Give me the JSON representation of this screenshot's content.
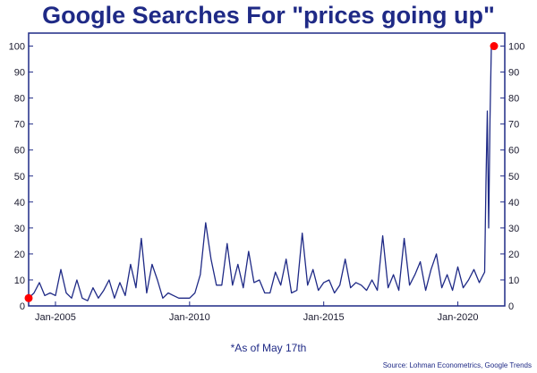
{
  "chart_data": {
    "type": "line",
    "title": "Google Searches For \"prices going up\"",
    "note": "*As of May 17th",
    "source": "Source: Lohman Econometrics, Google Trends",
    "ylim": [
      0,
      105
    ],
    "yticks": [
      0,
      10,
      20,
      30,
      40,
      50,
      60,
      70,
      80,
      90,
      100
    ],
    "xlim": [
      2004.0,
      2021.75
    ],
    "xticks": [
      {
        "label": "Jan-2005",
        "value": 2005.0
      },
      {
        "label": "Jan-2010",
        "value": 2010.0
      },
      {
        "label": "Jan-2015",
        "value": 2015.0
      },
      {
        "label": "Jan-2020",
        "value": 2020.0
      }
    ],
    "grid": false,
    "line_color": "#1f2a86",
    "marker_color": "#ff0000",
    "series": [
      {
        "x": [
          2004.0,
          2004.2,
          2004.4,
          2004.6,
          2004.8,
          2005.0,
          2005.2,
          2005.4,
          2005.6,
          2005.8,
          2006.0,
          2006.2,
          2006.4,
          2006.6,
          2006.8,
          2007.0,
          2007.2,
          2007.4,
          2007.6,
          2007.8,
          2008.0,
          2008.2,
          2008.4,
          2008.6,
          2008.8,
          2009.0,
          2009.2,
          2009.4,
          2009.6,
          2009.8,
          2010.0,
          2010.2,
          2010.4,
          2010.6,
          2010.8,
          2011.0,
          2011.2,
          2011.4,
          2011.6,
          2011.8,
          2012.0,
          2012.2,
          2012.4,
          2012.6,
          2012.8,
          2013.0,
          2013.2,
          2013.4,
          2013.6,
          2013.8,
          2014.0,
          2014.2,
          2014.4,
          2014.6,
          2014.8,
          2015.0,
          2015.2,
          2015.4,
          2015.6,
          2015.8,
          2016.0,
          2016.2,
          2016.4,
          2016.6,
          2016.8,
          2017.0,
          2017.2,
          2017.4,
          2017.6,
          2017.8,
          2018.0,
          2018.2,
          2018.4,
          2018.6,
          2018.8,
          2019.0,
          2019.2,
          2019.4,
          2019.6,
          2019.8,
          2020.0,
          2020.2,
          2020.4,
          2020.6,
          2020.8,
          2020.9,
          2021.0,
          2021.05,
          2021.1,
          2021.15,
          2021.2,
          2021.25,
          2021.3,
          2021.35
        ],
        "y": [
          3,
          5,
          9,
          4,
          5,
          4,
          14,
          5,
          3,
          10,
          3,
          2,
          7,
          3,
          6,
          10,
          3,
          9,
          4,
          16,
          7,
          26,
          5,
          16,
          10,
          3,
          5,
          4,
          3,
          3,
          3,
          5,
          12,
          32,
          18,
          8,
          8,
          24,
          8,
          16,
          7,
          21,
          9,
          10,
          5,
          5,
          13,
          8,
          18,
          5,
          6,
          28,
          8,
          14,
          6,
          9,
          10,
          5,
          8,
          18,
          7,
          9,
          8,
          6,
          10,
          6,
          27,
          7,
          12,
          6,
          26,
          8,
          12,
          17,
          6,
          14,
          20,
          7,
          12,
          6,
          15,
          7,
          10,
          14,
          9,
          11,
          13,
          48,
          75,
          30,
          72,
          100,
          100,
          100
        ],
        "end_markers": true
      }
    ]
  }
}
